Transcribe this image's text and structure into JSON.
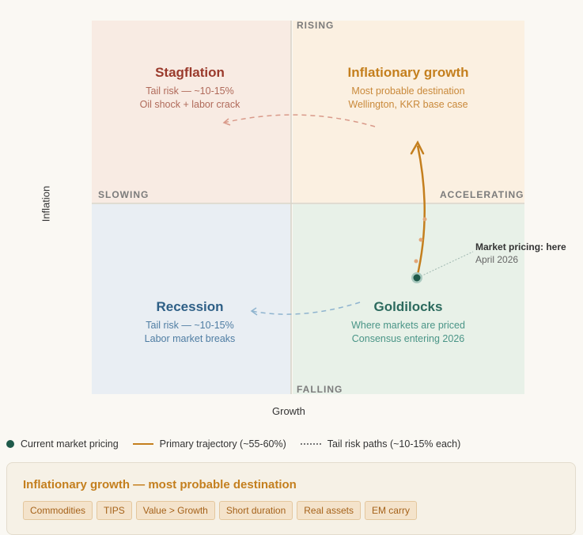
{
  "axes": {
    "top": "RISING",
    "bottom": "FALLING",
    "left": "SLOWING",
    "right": "ACCELERATING",
    "y_title": "Inflation",
    "x_title": "Growth"
  },
  "quadrants": {
    "stagflation": {
      "title": "Stagflation",
      "line1": "Tail risk — ~10-15%",
      "line2": "Oil shock + labor crack",
      "color": "#9a3a2c"
    },
    "inflationary": {
      "title": "Inflationary growth",
      "line1": "Most probable destination",
      "line2": "Wellington, KKR base case",
      "color": "#c47f1e"
    },
    "recession": {
      "title": "Recession",
      "line1": "Tail risk — ~10-15%",
      "line2": "Labor market breaks",
      "color": "#2e5f86"
    },
    "goldilocks": {
      "title": "Goldilocks",
      "line1": "Where markets are priced",
      "line2": "Consensus entering 2026",
      "color": "#2c6a5e"
    }
  },
  "annotation": {
    "line1": "Market pricing: here",
    "line2": "April 2026"
  },
  "legend": {
    "current": "Current market pricing",
    "primary": "Primary trajectory (~55-60%)",
    "tail": "Tail risk paths (~10-15% each)"
  },
  "card": {
    "title": "Inflationary growth — most probable destination",
    "tags": [
      "Commodities",
      "TIPS",
      "Value > Growth",
      "Short duration",
      "Real assets",
      "EM carry"
    ]
  }
}
